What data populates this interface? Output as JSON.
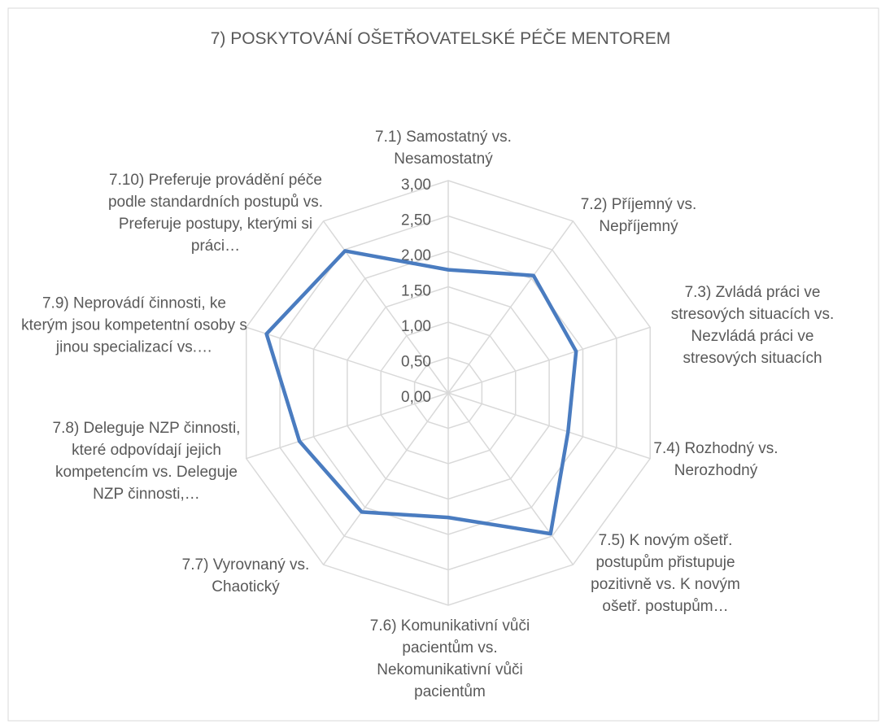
{
  "chart_data": {
    "type": "radar",
    "title": "7) POSKYTOVÁNÍ OŠETŘOVATELSKÉ PÉČE MENTOREM",
    "categories": [
      "7.1) Samostatný vs. Nesamostatný",
      "7.2) Příjemný vs. Nepříjemný",
      "7.3) Zvládá práci ve stresových situacích vs. Nezvládá práci ve stresových situacích",
      "7.4) Rozhodný vs. Nerozhodný",
      "7.5) K novým ošetř. postupům přistupuje pozitivně vs. K novým ošetř. postupům…",
      "7.6) Komunikativní vůči pacientům vs. Nekomunikativní vůči pacientům",
      "7.7) Vyrovnaný vs. Chaotický",
      "7.8) Deleguje NZP činnosti, které odpovídají jejich kompetencím vs. Deleguje NZP činnosti,…",
      "7.9) Neprovádí činnosti, ke kterým jsou kompetentní osoby s jinou specializací vs.…",
      "7.10) Preferuje provádění péče podle standardních postupů vs. Preferuje postupy, kterými si práci…"
    ],
    "values": [
      1.74,
      2.05,
      1.9,
      1.78,
      2.46,
      1.76,
      2.08,
      2.21,
      2.7,
      2.48
    ],
    "color": "#4a7cc0",
    "ylim": [
      0,
      3
    ],
    "yticks": [
      {
        "value": 0,
        "label": "0,00"
      },
      {
        "value": 0.5,
        "label": "0,50"
      },
      {
        "value": 1,
        "label": "1,00"
      },
      {
        "value": 1.5,
        "label": "1,50"
      },
      {
        "value": 2,
        "label": "2,00"
      },
      {
        "value": 2.5,
        "label": "2,50"
      },
      {
        "value": 3,
        "label": "3,00"
      }
    ],
    "grid": true
  }
}
